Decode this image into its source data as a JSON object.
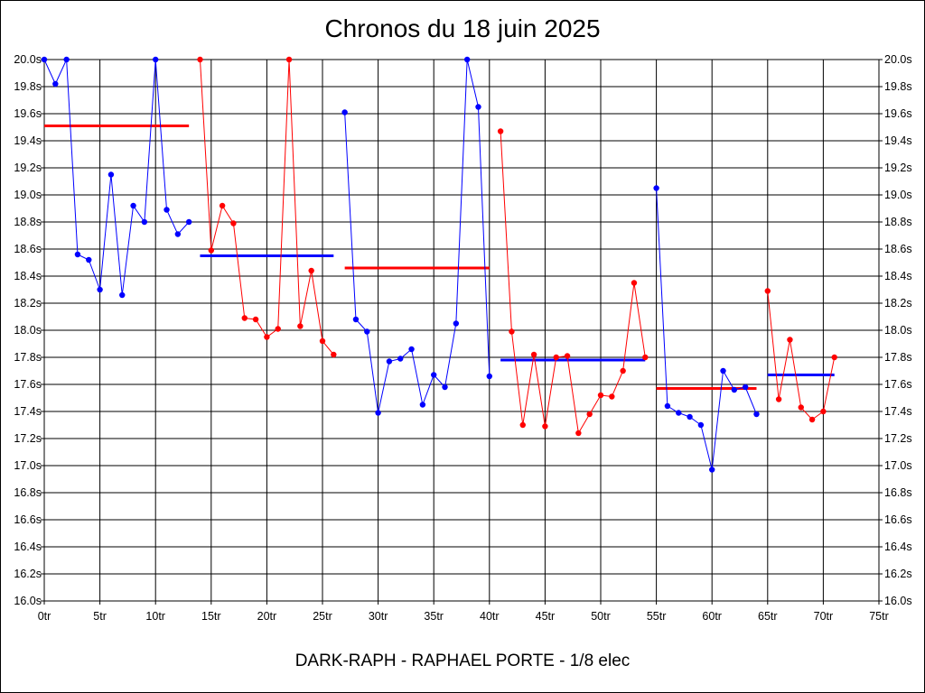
{
  "chart_data": {
    "type": "line",
    "title": "Chronos du 18 juin 2025",
    "subtitle": "DARK-RAPH - RAPHAEL PORTE - 1/8 elec",
    "xlabel": "",
    "ylabel": "",
    "xlim": [
      0,
      75
    ],
    "ylim": [
      16.0,
      20.0
    ],
    "grid": true,
    "x_ticks": [
      0,
      5,
      10,
      15,
      20,
      25,
      30,
      35,
      40,
      45,
      50,
      55,
      60,
      65,
      70,
      75
    ],
    "x_tick_labels": [
      "0tr",
      "5tr",
      "10tr",
      "15tr",
      "20tr",
      "25tr",
      "30tr",
      "35tr",
      "40tr",
      "45tr",
      "50tr",
      "55tr",
      "60tr",
      "65tr",
      "70tr",
      "75tr"
    ],
    "y_ticks": [
      16.0,
      16.2,
      16.4,
      16.6,
      16.8,
      17.0,
      17.2,
      17.4,
      17.6,
      17.8,
      18.0,
      18.2,
      18.4,
      18.6,
      18.8,
      19.0,
      19.2,
      19.4,
      19.6,
      19.8,
      20.0
    ],
    "y_tick_labels": [
      "16.0s",
      "16.2s",
      "16.4s",
      "16.6s",
      "16.8s",
      "17.0s",
      "17.2s",
      "17.4s",
      "17.6s",
      "17.8s",
      "18.0s",
      "18.2s",
      "18.4s",
      "18.6s",
      "18.8s",
      "19.0s",
      "19.2s",
      "19.4s",
      "19.6s",
      "19.8s",
      "20.0s"
    ],
    "colors": {
      "blue": "#0000ff",
      "red": "#ff0000"
    },
    "series": [
      {
        "color": "#0000ff",
        "points": [
          [
            0,
            20.0
          ],
          [
            1,
            19.82
          ],
          [
            2,
            20.0
          ],
          [
            3,
            18.56
          ],
          [
            4,
            18.52
          ],
          [
            5,
            18.3
          ],
          [
            6,
            19.15
          ],
          [
            7,
            18.26
          ],
          [
            8,
            18.92
          ],
          [
            9,
            18.8
          ],
          [
            10,
            20.0
          ],
          [
            11,
            18.89
          ],
          [
            12,
            18.71
          ],
          [
            13,
            18.8
          ]
        ],
        "average": {
          "x": [
            0,
            13
          ],
          "y": 19.51,
          "color": "#ff0000"
        }
      },
      {
        "color": "#ff0000",
        "points": [
          [
            14,
            20.0
          ],
          [
            15,
            18.59
          ],
          [
            16,
            18.92
          ],
          [
            17,
            18.79
          ],
          [
            18,
            18.09
          ],
          [
            19,
            18.08
          ],
          [
            20,
            17.95
          ],
          [
            21,
            18.01
          ],
          [
            22,
            20.0
          ],
          [
            23,
            18.03
          ],
          [
            24,
            18.44
          ],
          [
            25,
            17.92
          ],
          [
            26,
            17.82
          ]
        ],
        "average": {
          "x": [
            14,
            26
          ],
          "y": 18.55,
          "color": "#0000ff"
        }
      },
      {
        "color": "#0000ff",
        "points": [
          [
            27,
            19.61
          ],
          [
            28,
            18.08
          ],
          [
            29,
            17.99
          ],
          [
            30,
            17.39
          ],
          [
            31,
            17.77
          ],
          [
            32,
            17.79
          ],
          [
            33,
            17.86
          ],
          [
            34,
            17.45
          ],
          [
            35,
            17.67
          ],
          [
            36,
            17.58
          ],
          [
            37,
            18.05
          ],
          [
            38,
            20.0
          ],
          [
            39,
            19.65
          ],
          [
            40,
            17.66
          ]
        ],
        "average": {
          "x": [
            27,
            40
          ],
          "y": 18.46,
          "color": "#ff0000"
        }
      },
      {
        "color": "#ff0000",
        "points": [
          [
            41,
            19.47
          ],
          [
            42,
            17.99
          ],
          [
            43,
            17.3
          ],
          [
            44,
            17.82
          ],
          [
            45,
            17.29
          ],
          [
            46,
            17.8
          ],
          [
            47,
            17.81
          ],
          [
            48,
            17.24
          ],
          [
            49,
            17.38
          ],
          [
            50,
            17.52
          ],
          [
            51,
            17.51
          ],
          [
            52,
            17.7
          ],
          [
            53,
            18.35
          ],
          [
            54,
            17.8
          ]
        ],
        "average": {
          "x": [
            41,
            54
          ],
          "y": 17.78,
          "color": "#0000ff"
        }
      },
      {
        "color": "#0000ff",
        "points": [
          [
            55,
            19.05
          ],
          [
            56,
            17.44
          ],
          [
            57,
            17.39
          ],
          [
            58,
            17.36
          ],
          [
            59,
            17.3
          ],
          [
            60,
            16.97
          ],
          [
            61,
            17.7
          ],
          [
            62,
            17.56
          ],
          [
            63,
            17.58
          ],
          [
            64,
            17.38
          ]
        ],
        "average": {
          "x": [
            55,
            64
          ],
          "y": 17.57,
          "color": "#ff0000"
        }
      },
      {
        "color": "#ff0000",
        "points": [
          [
            65,
            18.29
          ],
          [
            66,
            17.49
          ],
          [
            67,
            17.93
          ],
          [
            68,
            17.43
          ],
          [
            69,
            17.34
          ],
          [
            70,
            17.4
          ],
          [
            71,
            17.8
          ]
        ],
        "average": {
          "x": [
            65,
            71
          ],
          "y": 17.67,
          "color": "#0000ff"
        }
      }
    ]
  }
}
